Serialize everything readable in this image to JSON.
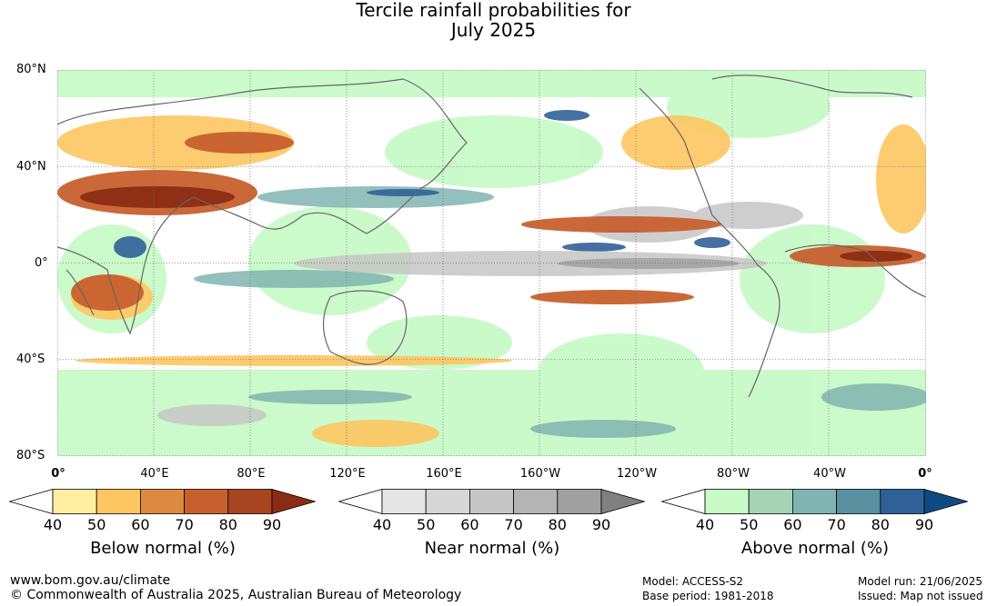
{
  "title": {
    "line1": "Tercile rainfall probabilities for",
    "line2": "July 2025"
  },
  "map": {
    "lat_labels": [
      "80°N",
      "40°N",
      "0°",
      "40°S",
      "80°S"
    ],
    "lon_labels": [
      "0°",
      "40°E",
      "80°E",
      "120°E",
      "160°E",
      "160°W",
      "120°W",
      "80°W",
      "40°W",
      "0°"
    ]
  },
  "colorbars": [
    {
      "label": "Below normal (%)",
      "ticks": [
        "40",
        "50",
        "60",
        "70",
        "80",
        "90"
      ],
      "colors": [
        "#ffeea0",
        "#fec660",
        "#dd8a40",
        "#c8602e",
        "#a84420",
        "#8a2c14"
      ]
    },
    {
      "label": "Near normal (%)",
      "ticks": [
        "40",
        "50",
        "60",
        "70",
        "80",
        "90"
      ],
      "colors": [
        "#e6e6e6",
        "#d6d6d6",
        "#c6c6c6",
        "#b4b4b4",
        "#a0a0a0",
        "#808080"
      ]
    },
    {
      "label": "Above normal (%)",
      "ticks": [
        "40",
        "50",
        "60",
        "70",
        "80",
        "90"
      ],
      "colors": [
        "#c8fac8",
        "#a4d4b4",
        "#80b4b0",
        "#5890a0",
        "#306098",
        "#104a84"
      ]
    }
  ],
  "footer": {
    "website": "www.bom.gov.au/climate",
    "copyright": "© Commonwealth of Australia 2025, Australian Bureau of Meteorology",
    "model": "Model: ACCESS-S2",
    "base_period": "Base period: 1981-2018",
    "model_run": "Model run: 21/06/2025",
    "issued": "Issued: Map not issued"
  }
}
